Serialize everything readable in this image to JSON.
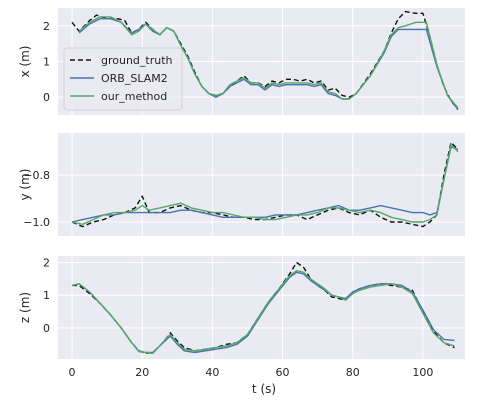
{
  "colors": {
    "background": "#eaeaf2",
    "grid": "#ffffff",
    "ground_truth": "#111111",
    "ORB_SLAM2": "#4c72b0",
    "our_method": "#55a868"
  },
  "chart_data": [
    {
      "type": "line",
      "ylabel": "x (m)",
      "xlim": [
        -4,
        112
      ],
      "ylim": [
        -0.5,
        2.5
      ],
      "grid": true,
      "xticks": [
        0,
        20,
        40,
        60,
        80,
        100
      ],
      "yticks": [
        {
          "v": 0,
          "label": "0"
        },
        {
          "v": 1,
          "label": "1"
        },
        {
          "v": 2,
          "label": "2"
        }
      ],
      "legend": {
        "placement": "center-left",
        "entries": [
          "ground_truth",
          "ORB_SLAM2",
          "our_method"
        ]
      },
      "series": [
        {
          "name": "ground_truth",
          "style": "dashed",
          "x": [
            0,
            2,
            5,
            7,
            10,
            13,
            15,
            17,
            19,
            21,
            23,
            25,
            27,
            29,
            31,
            33,
            35,
            37,
            39,
            41,
            43,
            45,
            47,
            49,
            51,
            53,
            55,
            57,
            59,
            61,
            63,
            65,
            67,
            69,
            71,
            73,
            75,
            77,
            79,
            81,
            85,
            89,
            91,
            93,
            95,
            98,
            100,
            102,
            104,
            106,
            108,
            110
          ],
          "y": [
            2.1,
            1.85,
            2.15,
            2.3,
            2.2,
            2.2,
            2.15,
            1.8,
            1.9,
            2.1,
            1.9,
            1.75,
            1.95,
            1.85,
            1.5,
            1.15,
            0.7,
            0.3,
            0.1,
            0.05,
            0.1,
            0.3,
            0.45,
            0.6,
            0.4,
            0.4,
            0.3,
            0.45,
            0.4,
            0.5,
            0.5,
            0.45,
            0.5,
            0.4,
            0.45,
            0.2,
            0.25,
            0.05,
            0.0,
            0.1,
            0.65,
            1.3,
            1.8,
            2.2,
            2.4,
            2.35,
            2.35,
            1.7,
            0.9,
            0.3,
            -0.1,
            -0.35
          ]
        },
        {
          "name": "ORB_SLAM2",
          "style": "solid",
          "x": [
            2,
            5,
            8,
            11,
            14,
            17,
            19,
            21,
            23,
            25,
            27,
            29,
            31,
            33,
            35,
            37,
            39,
            41,
            43,
            45,
            47,
            49,
            51,
            53,
            55,
            57,
            59,
            61,
            63,
            65,
            67,
            69,
            71,
            73,
            75,
            77,
            79,
            81,
            85,
            89,
            91,
            93,
            95,
            98,
            101,
            104,
            107,
            110
          ],
          "y": [
            1.8,
            2.05,
            2.2,
            2.2,
            2.1,
            1.8,
            1.9,
            2.05,
            1.85,
            1.75,
            1.95,
            1.85,
            1.45,
            1.1,
            0.65,
            0.3,
            0.1,
            0.0,
            0.1,
            0.3,
            0.4,
            0.5,
            0.35,
            0.35,
            0.2,
            0.35,
            0.3,
            0.35,
            0.35,
            0.35,
            0.35,
            0.3,
            0.35,
            0.1,
            0.05,
            -0.05,
            -0.05,
            0.1,
            0.6,
            1.25,
            1.7,
            1.9,
            1.9,
            1.9,
            1.9,
            0.85,
            0.05,
            -0.35
          ]
        },
        {
          "name": "our_method",
          "style": "solid",
          "x": [
            2,
            5,
            8,
            11,
            14,
            17,
            19,
            21,
            23,
            25,
            27,
            29,
            31,
            33,
            35,
            37,
            39,
            41,
            43,
            45,
            47,
            49,
            51,
            53,
            55,
            57,
            59,
            61,
            63,
            65,
            67,
            69,
            71,
            73,
            75,
            77,
            79,
            81,
            85,
            89,
            91,
            93,
            95,
            98,
            101,
            104,
            107,
            110
          ],
          "y": [
            1.85,
            2.1,
            2.25,
            2.25,
            2.1,
            1.75,
            1.85,
            2.05,
            1.9,
            1.75,
            1.95,
            1.85,
            1.45,
            1.1,
            0.65,
            0.3,
            0.1,
            0.05,
            0.1,
            0.35,
            0.45,
            0.55,
            0.4,
            0.4,
            0.25,
            0.4,
            0.35,
            0.4,
            0.4,
            0.4,
            0.4,
            0.35,
            0.4,
            0.15,
            0.1,
            -0.05,
            -0.05,
            0.1,
            0.6,
            1.3,
            1.75,
            1.95,
            2.0,
            2.1,
            2.1,
            0.9,
            0.05,
            -0.3
          ]
        }
      ]
    },
    {
      "type": "line",
      "ylabel": "y (m)",
      "xlim": [
        -4,
        112
      ],
      "ylim": [
        -1.06,
        -0.62
      ],
      "grid": true,
      "xticks": [
        0,
        20,
        40,
        60,
        80,
        100
      ],
      "yticks": [
        {
          "v": -1.0,
          "label": "−1.0"
        },
        {
          "v": -0.8,
          "label": "−0.8"
        }
      ],
      "series": [
        {
          "name": "ground_truth",
          "style": "dashed",
          "x": [
            0,
            3,
            6,
            9,
            12,
            15,
            18,
            20,
            22,
            25,
            28,
            31,
            34,
            37,
            40,
            43,
            46,
            49,
            52,
            55,
            58,
            61,
            64,
            67,
            70,
            73,
            76,
            79,
            82,
            85,
            88,
            91,
            94,
            97,
            100,
            102,
            104,
            106,
            108,
            110
          ],
          "y": [
            -1.0,
            -1.02,
            -1.0,
            -0.99,
            -0.97,
            -0.96,
            -0.94,
            -0.89,
            -0.96,
            -0.96,
            -0.94,
            -0.93,
            -0.95,
            -0.96,
            -0.96,
            -0.97,
            -0.98,
            -0.98,
            -0.99,
            -0.99,
            -0.98,
            -0.97,
            -0.97,
            -0.99,
            -0.97,
            -0.95,
            -0.94,
            -0.96,
            -0.97,
            -0.95,
            -0.98,
            -1.0,
            -1.0,
            -1.01,
            -1.02,
            -1.0,
            -0.97,
            -0.8,
            -0.66,
            -0.69
          ]
        },
        {
          "name": "ORB_SLAM2",
          "style": "solid",
          "x": [
            0,
            3,
            6,
            9,
            12,
            15,
            18,
            20,
            22,
            25,
            28,
            31,
            34,
            37,
            40,
            43,
            46,
            49,
            52,
            55,
            58,
            61,
            64,
            67,
            70,
            73,
            76,
            79,
            82,
            85,
            88,
            91,
            94,
            97,
            100,
            102,
            104,
            106,
            108,
            110
          ],
          "y": [
            -1.0,
            -0.99,
            -0.98,
            -0.97,
            -0.97,
            -0.96,
            -0.96,
            -0.96,
            -0.96,
            -0.96,
            -0.96,
            -0.95,
            -0.95,
            -0.96,
            -0.97,
            -0.98,
            -0.98,
            -0.98,
            -0.98,
            -0.98,
            -0.97,
            -0.97,
            -0.97,
            -0.96,
            -0.95,
            -0.94,
            -0.93,
            -0.95,
            -0.95,
            -0.94,
            -0.93,
            -0.94,
            -0.95,
            -0.96,
            -0.96,
            -0.97,
            -0.96,
            -0.82,
            -0.68,
            -0.69
          ]
        },
        {
          "name": "our_method",
          "style": "solid",
          "x": [
            0,
            3,
            6,
            9,
            12,
            15,
            18,
            20,
            22,
            25,
            28,
            31,
            34,
            37,
            40,
            43,
            46,
            49,
            52,
            55,
            58,
            61,
            64,
            67,
            70,
            73,
            76,
            79,
            82,
            85,
            88,
            91,
            94,
            97,
            100,
            102,
            104,
            106,
            108,
            110
          ],
          "y": [
            -1.0,
            -1.01,
            -0.99,
            -0.97,
            -0.96,
            -0.96,
            -0.95,
            -0.93,
            -0.95,
            -0.94,
            -0.93,
            -0.92,
            -0.94,
            -0.95,
            -0.96,
            -0.96,
            -0.97,
            -0.98,
            -0.98,
            -0.99,
            -0.99,
            -0.98,
            -0.97,
            -0.97,
            -0.96,
            -0.94,
            -0.94,
            -0.95,
            -0.96,
            -0.95,
            -0.96,
            -0.98,
            -0.99,
            -1.0,
            -1.0,
            -0.99,
            -0.97,
            -0.82,
            -0.67,
            -0.7
          ]
        }
      ]
    },
    {
      "type": "line",
      "ylabel": "z (m)",
      "xlabel": "t (s)",
      "xlim": [
        -4,
        112
      ],
      "ylim": [
        -0.95,
        2.2
      ],
      "grid": true,
      "xticks": [
        0,
        20,
        40,
        60,
        80,
        100
      ],
      "xtick_labels": [
        "0",
        "20",
        "40",
        "60",
        "80",
        "100"
      ],
      "yticks": [
        {
          "v": 0,
          "label": "0"
        },
        {
          "v": 1,
          "label": "1"
        },
        {
          "v": 2,
          "label": "2"
        }
      ],
      "series": [
        {
          "name": "ground_truth",
          "style": "dashed",
          "x": [
            0,
            2,
            5,
            8,
            11,
            14,
            17,
            19,
            21,
            23,
            25,
            27,
            28,
            30,
            32,
            35,
            38,
            41,
            44,
            47,
            50,
            53,
            56,
            59,
            62,
            64,
            66,
            68,
            70,
            72,
            74,
            76,
            78,
            80,
            82,
            85,
            88,
            91,
            94,
            97,
            100,
            103,
            106,
            109
          ],
          "y": [
            1.3,
            1.3,
            1.05,
            0.75,
            0.4,
            0.0,
            -0.45,
            -0.7,
            -0.78,
            -0.75,
            -0.55,
            -0.3,
            -0.15,
            -0.4,
            -0.6,
            -0.7,
            -0.65,
            -0.6,
            -0.5,
            -0.45,
            -0.2,
            0.3,
            0.8,
            1.2,
            1.65,
            2.0,
            1.85,
            1.5,
            1.3,
            1.15,
            0.95,
            0.9,
            0.85,
            1.1,
            1.2,
            1.3,
            1.35,
            1.3,
            1.25,
            1.15,
            0.5,
            -0.1,
            -0.45,
            -0.6
          ]
        },
        {
          "name": "ORB_SLAM2",
          "style": "solid",
          "x": [
            0,
            2,
            5,
            8,
            11,
            14,
            17,
            19,
            21,
            23,
            25,
            27,
            28,
            30,
            32,
            35,
            38,
            41,
            44,
            47,
            50,
            53,
            56,
            59,
            62,
            64,
            66,
            68,
            70,
            72,
            74,
            76,
            78,
            80,
            82,
            85,
            88,
            91,
            94,
            97,
            100,
            103,
            106,
            109
          ],
          "y": [
            1.3,
            1.35,
            1.1,
            0.75,
            0.4,
            0.0,
            -0.45,
            -0.7,
            -0.75,
            -0.75,
            -0.55,
            -0.35,
            -0.25,
            -0.5,
            -0.7,
            -0.75,
            -0.7,
            -0.65,
            -0.6,
            -0.5,
            -0.25,
            0.25,
            0.75,
            1.15,
            1.55,
            1.7,
            1.65,
            1.45,
            1.3,
            1.15,
            1.0,
            0.95,
            0.9,
            1.1,
            1.2,
            1.3,
            1.35,
            1.35,
            1.3,
            1.1,
            0.55,
            -0.05,
            -0.35,
            -0.38
          ]
        },
        {
          "name": "our_method",
          "style": "solid",
          "x": [
            0,
            2,
            5,
            8,
            11,
            14,
            17,
            19,
            21,
            23,
            25,
            27,
            28,
            30,
            32,
            35,
            38,
            41,
            44,
            47,
            50,
            53,
            56,
            59,
            62,
            64,
            66,
            68,
            70,
            72,
            74,
            76,
            78,
            80,
            82,
            85,
            88,
            91,
            94,
            97,
            100,
            103,
            106,
            109
          ],
          "y": [
            1.3,
            1.35,
            1.1,
            0.75,
            0.4,
            0.0,
            -0.45,
            -0.72,
            -0.75,
            -0.78,
            -0.55,
            -0.3,
            -0.2,
            -0.45,
            -0.65,
            -0.7,
            -0.65,
            -0.6,
            -0.55,
            -0.45,
            -0.2,
            0.3,
            0.8,
            1.2,
            1.6,
            1.75,
            1.7,
            1.5,
            1.35,
            1.2,
            1.0,
            0.95,
            0.85,
            1.05,
            1.15,
            1.25,
            1.3,
            1.35,
            1.25,
            1.05,
            0.45,
            -0.15,
            -0.45,
            -0.55
          ]
        }
      ]
    }
  ]
}
